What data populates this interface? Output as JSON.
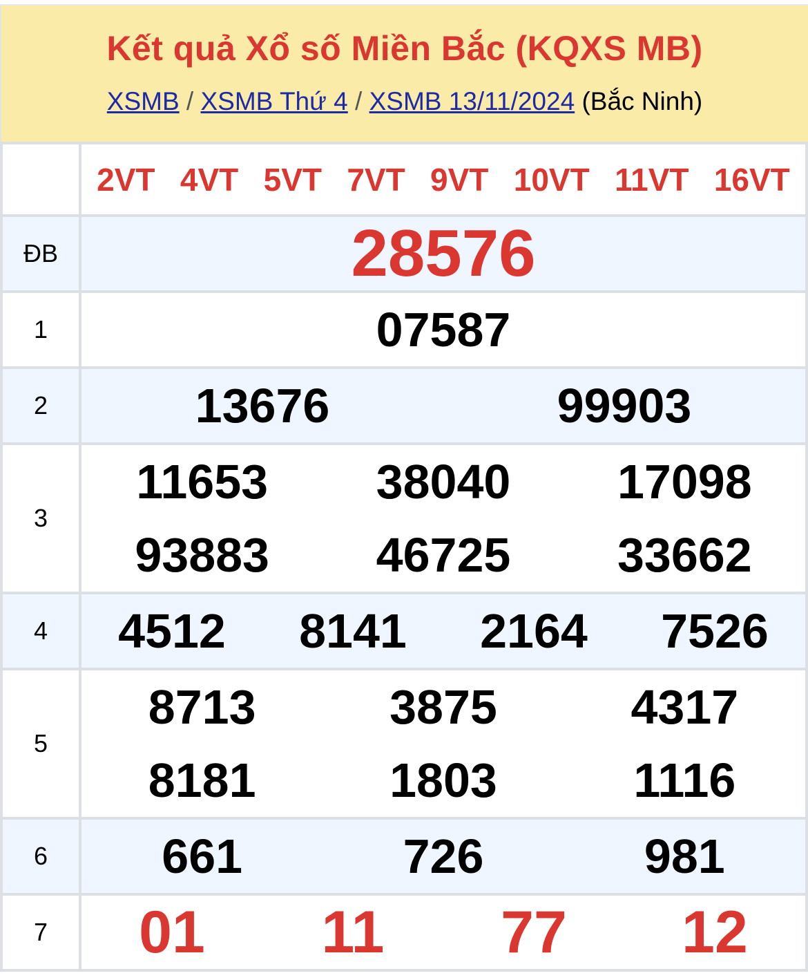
{
  "header": {
    "title": "Kết quả Xổ số Miền Bắc (KQXS MB)",
    "breadcrumb": [
      "XSMB",
      "XSMB Thứ 4",
      "XSMB 13/11/2024"
    ],
    "separator": "/",
    "province": "(Bắc Ninh)"
  },
  "codes": [
    "2VT",
    "4VT",
    "5VT",
    "7VT",
    "9VT",
    "10VT",
    "11VT",
    "16VT"
  ],
  "prizes": {
    "db": {
      "label": "ĐB",
      "numbers": [
        "28576"
      ]
    },
    "g1": {
      "label": "1",
      "numbers": [
        "07587"
      ]
    },
    "g2": {
      "label": "2",
      "numbers": [
        "13676",
        "99903"
      ]
    },
    "g3": {
      "label": "3",
      "numbers": [
        "11653",
        "38040",
        "17098",
        "93883",
        "46725",
        "33662"
      ]
    },
    "g4": {
      "label": "4",
      "numbers": [
        "4512",
        "8141",
        "2164",
        "7526"
      ]
    },
    "g5": {
      "label": "5",
      "numbers": [
        "8713",
        "3875",
        "4317",
        "8181",
        "1803",
        "1116"
      ]
    },
    "g6": {
      "label": "6",
      "numbers": [
        "661",
        "726",
        "981"
      ]
    },
    "g7": {
      "label": "7",
      "numbers": [
        "01",
        "11",
        "77",
        "12"
      ]
    }
  },
  "colors": {
    "accent": "#d9372f",
    "header_bg": "#fbeba8",
    "alt_row_bg": "#eff6ff",
    "link": "#1c2aa8"
  }
}
